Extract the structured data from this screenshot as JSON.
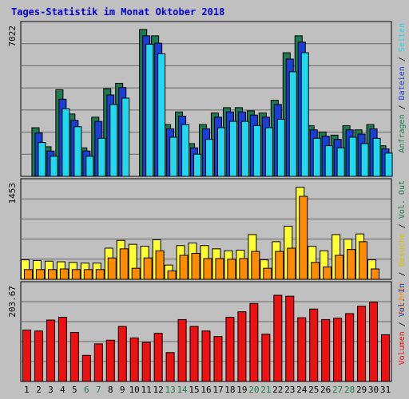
{
  "chart_data": {
    "type": "bar",
    "title": "Tages-Statistik im Monat Oktober 2018",
    "days": [
      "1",
      "2",
      "3",
      "4",
      "5",
      "6",
      "7",
      "8",
      "9",
      "10",
      "11",
      "12",
      "13",
      "14",
      "15",
      "16",
      "17",
      "18",
      "19",
      "20",
      "21",
      "22",
      "23",
      "24",
      "25",
      "26",
      "27",
      "28",
      "29",
      "30",
      "31"
    ],
    "weekend_days": [
      "6",
      "7",
      "13",
      "14",
      "20",
      "21",
      "27",
      "28"
    ],
    "grid": true,
    "colors": {
      "anfragen": "#1f7a52",
      "dateien": "#1a3ed6",
      "seiten": "#22d8ee",
      "besuche": "#ffff33",
      "rechner": "#ff8c00",
      "volumen": "#ee1111",
      "weekday_label": "#000000",
      "weekend_label": "#1f7a52",
      "title": "#0000cc"
    },
    "panels": [
      {
        "name": "top",
        "ymax_label": "7022",
        "ymax": 7022,
        "series": [
          {
            "name": "Anfragen",
            "values": [
              2300,
              1400,
              4100,
              2950,
              1350,
              2800,
              4150,
              4400,
              6950,
              6650,
              2450,
              3050,
              1550,
              2450,
              3000,
              3250,
              3250,
              3100,
              3000,
              3600,
              5850,
              6650,
              2400,
              2100,
              1950,
              2400,
              2200,
              2450,
              1450
            ]
          },
          {
            "name": "Dateien",
            "values": [
              2050,
              1200,
              3650,
              2650,
              1200,
              2600,
              3850,
              4200,
              6650,
              6300,
              2250,
              2850,
              1350,
              2250,
              2800,
              3050,
              3050,
              2900,
              2800,
              3400,
              5550,
              6350,
              2200,
              1900,
              1750,
              2200,
              2000,
              2250,
              1300
            ]
          },
          {
            "name": "Seiten",
            "values": [
              1600,
              950,
              3200,
              2350,
              950,
              1800,
              3400,
              3700,
              6250,
              5800,
              1850,
              2450,
              1050,
              1750,
              2300,
              2600,
              2600,
              2400,
              2300,
              2700,
              4950,
              5850,
              1800,
              1450,
              1350,
              1850,
              1550,
              1800,
              1100
            ]
          }
        ],
        "series_days": [
          "2",
          "3",
          "4",
          "5",
          "6",
          "7",
          "8",
          "9",
          "11",
          "12",
          "13",
          "14",
          "15",
          "16",
          "17",
          "18",
          "19",
          "20",
          "21",
          "22",
          "23",
          "24",
          "25",
          "26",
          "27",
          "28",
          "29",
          "30",
          "31"
        ]
      },
      {
        "name": "middle",
        "ymax_label": "1453",
        "ymax": 1453,
        "series": [
          {
            "name": "Besuche",
            "values": [
              300,
              290,
              280,
              270,
              260,
              250,
              250,
              480,
              600,
              540,
              510,
              610,
              220,
              520,
              560,
              520,
              470,
              440,
              450,
              690,
              300,
              580,
              820,
              1420,
              510,
              440,
              690,
              620,
              700,
              300
            ]
          },
          {
            "name": "Rechner",
            "values": [
              150,
              150,
              150,
              160,
              150,
              150,
              150,
              330,
              470,
              170,
              330,
              440,
              130,
              370,
              400,
              320,
              320,
              310,
              320,
              430,
              170,
              430,
              480,
              1280,
              260,
              190,
              370,
              460,
              580,
              160
            ]
          }
        ],
        "series_days": [
          "1",
          "2",
          "3",
          "4",
          "5",
          "6",
          "7",
          "8",
          "9",
          "10",
          "11",
          "12",
          "13",
          "14",
          "15",
          "16",
          "17",
          "18",
          "19",
          "20",
          "21",
          "22",
          "23",
          "24",
          "25",
          "26",
          "27",
          "28",
          "29",
          "30"
        ]
      },
      {
        "name": "bottom",
        "ymax_label": "203.67",
        "ymax": 203.67,
        "series": [
          {
            "name": "Volumen",
            "values": [
              112,
              110,
              134,
              140,
              107,
              57,
              82,
              90,
              120,
              95,
              85,
              105,
              63,
              135,
              120,
              110,
              98,
              140,
              152,
              170,
              103,
              188,
              186,
              139,
              158,
              135,
              138,
              148,
              164,
              173,
              102
            ]
          }
        ],
        "series_days": [
          "1",
          "2",
          "3",
          "4",
          "5",
          "6",
          "7",
          "8",
          "9",
          "10",
          "11",
          "12",
          "13",
          "14",
          "15",
          "16",
          "17",
          "18",
          "19",
          "20",
          "21",
          "22",
          "23",
          "24",
          "25",
          "26",
          "27",
          "28",
          "29",
          "30",
          "31"
        ]
      }
    ],
    "right_labels": {
      "top": [
        {
          "text": "Anfragen",
          "color": "#1f7a52"
        },
        {
          "text": " / ",
          "color": "#000000"
        },
        {
          "text": "Dateien",
          "color": "#1a3ed6"
        },
        {
          "text": " / ",
          "color": "#000000"
        },
        {
          "text": "Seiten",
          "color": "#22d8ee"
        }
      ],
      "middle": [
        {
          "text": "Rechner",
          "color": "#ff8c00"
        },
        {
          "text": " / ",
          "color": "#000000"
        },
        {
          "text": "Besuche",
          "color": "#d4c400"
        },
        {
          "text": " / ",
          "color": "#000000"
        },
        {
          "text": "Vol. Out",
          "color": "#1f7a52"
        }
      ],
      "bottom": [
        {
          "text": "Volumen",
          "color": "#ee1111"
        },
        {
          "text": " / ",
          "color": "#000000"
        },
        {
          "text": "Vol. In",
          "color": "#1a3ed6"
        }
      ]
    }
  }
}
